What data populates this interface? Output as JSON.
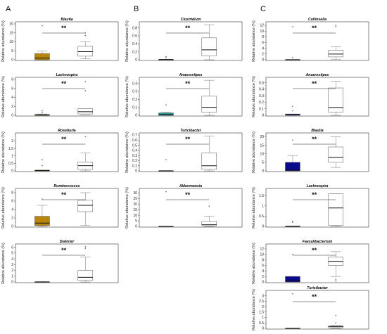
{
  "figure": {
    "column_letters": [
      "A",
      "B",
      "C"
    ],
    "ylabel": "Relative abundance (%)"
  },
  "chart_data": [
    {
      "type": "box",
      "column": 0,
      "title": "Blautia",
      "ylim": [
        0,
        20
      ],
      "yticks": [
        0,
        5,
        10,
        15,
        20
      ],
      "significance": "**",
      "boxes": [
        {
          "q1": 0,
          "median": 1,
          "q3": 3.5,
          "wlo": 0,
          "whi": 5,
          "outliers": [
            19
          ],
          "fill": "#b8860b"
        },
        {
          "q1": 2,
          "median": 4.5,
          "q3": 7.5,
          "wlo": 0.5,
          "whi": 10,
          "outliers": [
            15,
            13.5
          ],
          "fill": "#ffffff"
        }
      ]
    },
    {
      "type": "box",
      "column": 0,
      "title": "Lachnospira",
      "ylim": [
        0,
        8
      ],
      "yticks": [
        0,
        2,
        4,
        6,
        8
      ],
      "significance": "**",
      "boxes": [
        {
          "q1": 0,
          "median": 0.05,
          "q3": 0.2,
          "wlo": 0,
          "whi": 0.3,
          "outliers": [
            1,
            0.6
          ],
          "fill": "#b8860b"
        },
        {
          "q1": 0.3,
          "median": 0.8,
          "q3": 1.5,
          "wlo": 0.1,
          "whi": 1.5,
          "outliers": [
            7.5,
            5.5
          ],
          "fill": "#ffffff"
        }
      ]
    },
    {
      "type": "box",
      "column": 0,
      "title": "Roseburia",
      "ylim": [
        0,
        2.4
      ],
      "yticks": [
        0,
        0.5,
        1.0,
        1.5,
        2.0
      ],
      "significance": "**",
      "boxes": [
        {
          "q1": 0,
          "median": 0.02,
          "q3": 0.05,
          "wlo": 0,
          "whi": 0.05,
          "outliers": [
            0.75,
            0.35
          ],
          "fill": "#b8860b"
        },
        {
          "q1": 0.1,
          "median": 0.35,
          "q3": 0.6,
          "wlo": 0,
          "whi": 1.2,
          "outliers": [
            2.3
          ],
          "fill": "#ffffff"
        }
      ]
    },
    {
      "type": "box",
      "column": 0,
      "title": "Ruminococcus",
      "ylim": [
        0,
        8.5
      ],
      "yticks": [
        0,
        2,
        4,
        6,
        8
      ],
      "significance": "**",
      "boxes": [
        {
          "q1": 0.2,
          "median": 0.8,
          "q3": 2.4,
          "wlo": 0,
          "whi": 5,
          "outliers": [
            6.5
          ],
          "fill": "#b8860b"
        },
        {
          "q1": 3.5,
          "median": 5,
          "q3": 6.2,
          "wlo": 0.2,
          "whi": 8,
          "outliers": [],
          "fill": "#ffffff"
        }
      ]
    },
    {
      "type": "box",
      "column": 0,
      "title": "Dialister",
      "ylim": [
        0,
        6.2
      ],
      "yticks": [
        0,
        1,
        2,
        3,
        4,
        5,
        6
      ],
      "significance": "**",
      "boxes": [
        {
          "q1": 0,
          "median": 0,
          "q3": 0.05,
          "wlo": 0,
          "whi": 0.05,
          "outliers": [],
          "fill": "#b8860b"
        },
        {
          "q1": 0.3,
          "median": 0.8,
          "q3": 2,
          "wlo": 0,
          "whi": 4.3,
          "outliers": [
            6.1,
            5.8
          ],
          "fill": "#ffffff"
        }
      ]
    },
    {
      "type": "box",
      "column": 1,
      "title": "Clostridium",
      "ylim": [
        0,
        0.9
      ],
      "yticks": [
        0,
        0.2,
        0.4,
        0.6,
        0.8
      ],
      "significance": "**",
      "boxes": [
        {
          "q1": 0,
          "median": 0.005,
          "q3": 0.01,
          "wlo": 0,
          "whi": 0.01,
          "outliers": [
            0.08,
            0.05
          ],
          "fill": "#1a9a9a"
        },
        {
          "q1": 0.1,
          "median": 0.25,
          "q3": 0.55,
          "wlo": 0,
          "whi": 0.88,
          "outliers": [],
          "fill": "#ffffff"
        }
      ]
    },
    {
      "type": "box",
      "column": 1,
      "title": "Anaerostipes",
      "ylim": [
        0,
        0.45
      ],
      "yticks": [
        0,
        0.1,
        0.2,
        0.3,
        0.4
      ],
      "significance": "**",
      "boxes": [
        {
          "q1": 0,
          "median": 0.01,
          "q3": 0.03,
          "wlo": 0,
          "whi": 0.04,
          "outliers": [
            0.13
          ],
          "fill": "#1a9a9a"
        },
        {
          "q1": 0.04,
          "median": 0.1,
          "q3": 0.24,
          "wlo": 0,
          "whi": 0.44,
          "outliers": [],
          "fill": "#ffffff"
        }
      ]
    },
    {
      "type": "box",
      "column": 1,
      "title": "Turicibacter",
      "ylim": [
        0,
        0.7
      ],
      "yticks": [
        0,
        0.1,
        0.2,
        0.3,
        0.4,
        0.5,
        0.6,
        0.7
      ],
      "significance": "**",
      "boxes": [
        {
          "q1": 0,
          "median": 0,
          "q3": 0.005,
          "wlo": 0,
          "whi": 0.005,
          "outliers": [
            0.22
          ],
          "fill": "#1a9a9a"
        },
        {
          "q1": 0.03,
          "median": 0.1,
          "q3": 0.35,
          "wlo": 0,
          "whi": 0.68,
          "outliers": [],
          "fill": "#ffffff"
        }
      ]
    },
    {
      "type": "box",
      "column": 1,
      "title": "Akkermansia",
      "ylim": [
        0,
        32
      ],
      "yticks": [
        0,
        5,
        10,
        15,
        20,
        25,
        30
      ],
      "significance": "**",
      "boxes": [
        {
          "q1": 0,
          "median": 0,
          "q3": 0.2,
          "wlo": 0,
          "whi": 0.2,
          "outliers": [
            31
          ],
          "fill": "#1a9a9a"
        },
        {
          "q1": 0.5,
          "median": 1.5,
          "q3": 4.5,
          "wlo": 0,
          "whi": 9,
          "outliers": [
            18
          ],
          "fill": "#ffffff"
        }
      ]
    },
    {
      "type": "box",
      "column": 2,
      "title": "Collinsella",
      "ylim": [
        0,
        12.5
      ],
      "yticks": [
        0,
        2,
        4,
        6,
        8,
        10,
        12
      ],
      "significance": "**",
      "boxes": [
        {
          "q1": 0,
          "median": 0,
          "q3": 0.1,
          "wlo": 0,
          "whi": 0.1,
          "outliers": [
            11.5,
            0.8
          ],
          "fill": "#0a0a8a"
        },
        {
          "q1": 1,
          "median": 2,
          "q3": 3.3,
          "wlo": 0.2,
          "whi": 4.5,
          "outliers": [
            12,
            11.5
          ],
          "fill": "#ffffff"
        }
      ]
    },
    {
      "type": "box",
      "column": 2,
      "title": "Anaerostipes",
      "ylim": [
        0,
        0.55
      ],
      "yticks": [
        0,
        0.1,
        0.2,
        0.3,
        0.4,
        0.5
      ],
      "significance": "**",
      "boxes": [
        {
          "q1": 0,
          "median": 0.01,
          "q3": 0.02,
          "wlo": 0,
          "whi": 0.02,
          "outliers": [
            0.14,
            0.07
          ],
          "fill": "#0a0a8a"
        },
        {
          "q1": 0.05,
          "median": 0.12,
          "q3": 0.42,
          "wlo": 0,
          "whi": 0.52,
          "outliers": [],
          "fill": "#ffffff"
        }
      ]
    },
    {
      "type": "box",
      "column": 2,
      "title": "Blautia",
      "ylim": [
        0,
        21
      ],
      "yticks": [
        0,
        5,
        10,
        15,
        20
      ],
      "significance": "**",
      "boxes": [
        {
          "q1": 0,
          "median": 0.5,
          "q3": 5,
          "wlo": 0,
          "whi": 9,
          "outliers": [
            18
          ],
          "fill": "#0a0a8a"
        },
        {
          "q1": 5,
          "median": 8,
          "q3": 14,
          "wlo": 2,
          "whi": 20,
          "outliers": [],
          "fill": "#ffffff"
        }
      ]
    },
    {
      "type": "box",
      "column": 2,
      "title": "Lachnospira",
      "ylim": [
        0,
        1.75
      ],
      "yticks": [
        0,
        0.5,
        1.0,
        1.5
      ],
      "significance": "**",
      "boxes": [
        {
          "q1": 0,
          "median": 0,
          "q3": 0.02,
          "wlo": 0,
          "whi": 0.02,
          "outliers": [
            0.25,
            0.2
          ],
          "fill": "#0a0a8a"
        },
        {
          "q1": 0.05,
          "median": 0.9,
          "q3": 1.6,
          "wlo": 0,
          "whi": 1.6,
          "outliers": [],
          "fill": "#ffffff"
        }
      ]
    },
    {
      "type": "box",
      "column": 2,
      "title": "Faecalibacterium",
      "ylim": [
        0,
        13
      ],
      "yticks": [
        0,
        2,
        4,
        6,
        8,
        10,
        12
      ],
      "significance": "**",
      "boxes": [
        {
          "q1": 0,
          "median": 0.5,
          "q3": 2,
          "wlo": 0,
          "whi": 2,
          "outliers": [
            10
          ],
          "fill": "#0a0a8a"
        },
        {
          "q1": 6,
          "median": 7.5,
          "q3": 9,
          "wlo": 2,
          "whi": 11,
          "outliers": [
            1,
            0.3
          ],
          "fill": "#ffffff"
        }
      ]
    },
    {
      "type": "box",
      "column": 2,
      "title": "Turicibacter",
      "ylim": [
        0,
        3.3
      ],
      "yticks": [
        0,
        0.5,
        1.0,
        1.5,
        2.0,
        2.5,
        3.0
      ],
      "significance": "**",
      "boxes": [
        {
          "q1": 0,
          "median": 0,
          "q3": 0.02,
          "wlo": 0,
          "whi": 0.02,
          "outliers": [
            3.2
          ],
          "fill": "#0a0a8a"
        },
        {
          "q1": 0.05,
          "median": 0.15,
          "q3": 0.25,
          "wlo": 0,
          "whi": 0.3,
          "outliers": [
            1.2,
            0.5
          ],
          "fill": "#ffffff"
        }
      ]
    }
  ]
}
